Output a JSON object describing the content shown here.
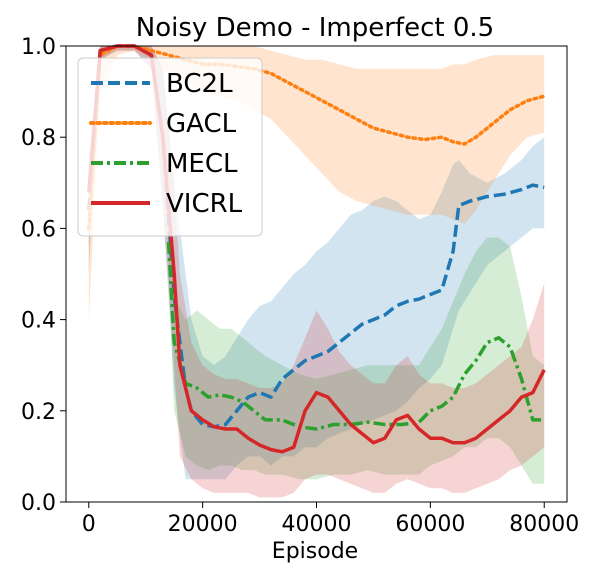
{
  "chart_data": {
    "type": "line",
    "title": "Noisy Demo - Imperfect 0.5",
    "xlabel": "Episode",
    "ylabel": "",
    "xlim": [
      -4000,
      84000
    ],
    "ylim": [
      0.0,
      1.0
    ],
    "xticks": [
      0,
      20000,
      40000,
      60000,
      80000
    ],
    "xtick_labels": [
      "0",
      "20000",
      "40000",
      "60000",
      "80000"
    ],
    "yticks": [
      0.0,
      0.2,
      0.4,
      0.6,
      0.8,
      1.0
    ],
    "ytick_labels": [
      "0.0",
      "0.2",
      "0.4",
      "0.6",
      "0.8",
      "1.0"
    ],
    "grid": false,
    "legend_position": "upper-left",
    "series": [
      {
        "name": "BC2L",
        "color": "#1f77b4",
        "linestyle": "dashed",
        "x": [
          0,
          2000,
          5000,
          8000,
          11000,
          13000,
          15000,
          17000,
          18000,
          20000,
          22000,
          24000,
          26000,
          28000,
          30000,
          32000,
          34000,
          36000,
          38000,
          40000,
          42000,
          44000,
          46000,
          48000,
          50000,
          52000,
          54000,
          56000,
          58000,
          60000,
          62000,
          64000,
          65000,
          67000,
          70000,
          73000,
          76000,
          78000,
          80000
        ],
        "y": [
          0.64,
          0.99,
          1.0,
          1.0,
          0.98,
          0.8,
          0.45,
          0.25,
          0.2,
          0.17,
          0.165,
          0.17,
          0.2,
          0.23,
          0.24,
          0.23,
          0.27,
          0.29,
          0.31,
          0.32,
          0.33,
          0.35,
          0.37,
          0.39,
          0.4,
          0.41,
          0.43,
          0.44,
          0.445,
          0.455,
          0.465,
          0.55,
          0.65,
          0.66,
          0.67,
          0.675,
          0.685,
          0.695,
          0.69
        ],
        "band_upper": [
          0.7,
          1.0,
          1.0,
          1.0,
          1.0,
          0.95,
          0.7,
          0.5,
          0.4,
          0.32,
          0.3,
          0.32,
          0.36,
          0.4,
          0.43,
          0.44,
          0.47,
          0.5,
          0.52,
          0.55,
          0.57,
          0.6,
          0.63,
          0.64,
          0.66,
          0.67,
          0.66,
          0.64,
          0.62,
          0.63,
          0.68,
          0.74,
          0.75,
          0.72,
          0.7,
          0.72,
          0.75,
          0.78,
          0.8
        ],
        "band_lower": [
          0.5,
          0.97,
          0.99,
          0.99,
          0.95,
          0.65,
          0.25,
          0.05,
          0.05,
          0.05,
          0.05,
          0.05,
          0.08,
          0.1,
          0.1,
          0.08,
          0.1,
          0.1,
          0.12,
          0.12,
          0.14,
          0.15,
          0.16,
          0.17,
          0.18,
          0.19,
          0.2,
          0.22,
          0.25,
          0.27,
          0.3,
          0.38,
          0.42,
          0.46,
          0.52,
          0.55,
          0.58,
          0.6,
          0.6
        ]
      },
      {
        "name": "GACL",
        "color": "#ff7f0e",
        "linestyle": "dotted",
        "x": [
          0,
          2000,
          5000,
          8000,
          11000,
          14000,
          17000,
          20000,
          23000,
          26000,
          29000,
          32000,
          35000,
          38000,
          41000,
          44000,
          47000,
          50000,
          53000,
          56000,
          59000,
          62000,
          64000,
          66000,
          68000,
          71000,
          74000,
          77000,
          80000
        ],
        "y": [
          0.6,
          0.98,
          1.0,
          1.0,
          0.99,
          0.98,
          0.97,
          0.96,
          0.96,
          0.955,
          0.95,
          0.94,
          0.92,
          0.9,
          0.88,
          0.86,
          0.84,
          0.82,
          0.81,
          0.8,
          0.795,
          0.8,
          0.79,
          0.785,
          0.8,
          0.83,
          0.86,
          0.88,
          0.89
        ],
        "band_upper": [
          0.7,
          1.0,
          1.0,
          1.0,
          1.0,
          1.0,
          1.0,
          1.0,
          1.0,
          1.0,
          1.0,
          0.99,
          0.98,
          0.97,
          0.97,
          0.96,
          0.95,
          0.95,
          0.95,
          0.95,
          0.95,
          0.95,
          0.96,
          0.96,
          0.97,
          0.98,
          0.98,
          0.98,
          0.98
        ],
        "band_lower": [
          0.4,
          0.9,
          0.98,
          0.99,
          0.97,
          0.94,
          0.92,
          0.9,
          0.89,
          0.88,
          0.86,
          0.84,
          0.8,
          0.76,
          0.72,
          0.68,
          0.66,
          0.65,
          0.64,
          0.63,
          0.63,
          0.63,
          0.62,
          0.61,
          0.64,
          0.7,
          0.76,
          0.8,
          0.81
        ]
      },
      {
        "name": "MECL",
        "color": "#2ca02c",
        "linestyle": "dashdot",
        "x": [
          14000,
          15000,
          17000,
          19000,
          21000,
          23000,
          25000,
          27000,
          29000,
          31000,
          34000,
          37000,
          40000,
          43000,
          46000,
          49000,
          52000,
          55000,
          58000,
          60000,
          62000,
          64000,
          66000,
          68000,
          70000,
          72000,
          74000,
          76000,
          78000,
          80000
        ],
        "y": [
          0.57,
          0.35,
          0.26,
          0.25,
          0.23,
          0.235,
          0.23,
          0.22,
          0.2,
          0.18,
          0.18,
          0.165,
          0.16,
          0.17,
          0.17,
          0.175,
          0.17,
          0.17,
          0.175,
          0.2,
          0.21,
          0.23,
          0.28,
          0.31,
          0.35,
          0.36,
          0.34,
          0.27,
          0.18,
          0.18
        ],
        "band_upper": [
          0.6,
          0.45,
          0.4,
          0.42,
          0.4,
          0.38,
          0.38,
          0.36,
          0.34,
          0.32,
          0.3,
          0.28,
          0.27,
          0.28,
          0.29,
          0.3,
          0.3,
          0.3,
          0.3,
          0.34,
          0.38,
          0.44,
          0.5,
          0.55,
          0.58,
          0.58,
          0.56,
          0.45,
          0.32,
          0.3
        ],
        "band_lower": [
          0.5,
          0.2,
          0.1,
          0.08,
          0.07,
          0.08,
          0.08,
          0.07,
          0.07,
          0.06,
          0.06,
          0.05,
          0.05,
          0.06,
          0.06,
          0.07,
          0.06,
          0.06,
          0.06,
          0.08,
          0.09,
          0.1,
          0.12,
          0.12,
          0.14,
          0.14,
          0.12,
          0.08,
          0.04,
          0.04
        ]
      },
      {
        "name": "VICRL",
        "color": "#d62728",
        "linestyle": "solid",
        "x": [
          0,
          2000,
          5000,
          8000,
          11000,
          13000,
          15000,
          16000,
          18000,
          20000,
          22000,
          24000,
          26000,
          28000,
          30000,
          32000,
          34000,
          36000,
          38000,
          40000,
          42000,
          44000,
          46000,
          48000,
          50000,
          52000,
          54000,
          56000,
          58000,
          60000,
          62000,
          64000,
          66000,
          68000,
          70000,
          72000,
          74000,
          76000,
          78000,
          80000
        ],
        "y": [
          0.68,
          0.99,
          1.0,
          1.0,
          0.98,
          0.8,
          0.5,
          0.3,
          0.2,
          0.18,
          0.165,
          0.16,
          0.16,
          0.14,
          0.125,
          0.115,
          0.11,
          0.12,
          0.2,
          0.24,
          0.23,
          0.2,
          0.17,
          0.15,
          0.13,
          0.14,
          0.18,
          0.19,
          0.16,
          0.14,
          0.14,
          0.13,
          0.13,
          0.14,
          0.16,
          0.18,
          0.2,
          0.23,
          0.24,
          0.29
        ],
        "band_upper": [
          0.75,
          1.0,
          1.0,
          1.0,
          1.0,
          0.95,
          0.7,
          0.5,
          0.35,
          0.3,
          0.28,
          0.27,
          0.27,
          0.26,
          0.25,
          0.25,
          0.26,
          0.3,
          0.36,
          0.42,
          0.38,
          0.33,
          0.3,
          0.28,
          0.26,
          0.26,
          0.3,
          0.32,
          0.28,
          0.26,
          0.26,
          0.25,
          0.25,
          0.26,
          0.28,
          0.3,
          0.32,
          0.34,
          0.4,
          0.48
        ],
        "band_lower": [
          0.55,
          0.97,
          0.99,
          0.99,
          0.95,
          0.65,
          0.3,
          0.1,
          0.05,
          0.03,
          0.02,
          0.02,
          0.02,
          0.02,
          0.01,
          0.01,
          0.01,
          0.02,
          0.05,
          0.06,
          0.06,
          0.05,
          0.04,
          0.03,
          0.02,
          0.02,
          0.04,
          0.05,
          0.04,
          0.03,
          0.03,
          0.02,
          0.02,
          0.03,
          0.04,
          0.05,
          0.07,
          0.08,
          0.1,
          0.12
        ]
      }
    ]
  }
}
